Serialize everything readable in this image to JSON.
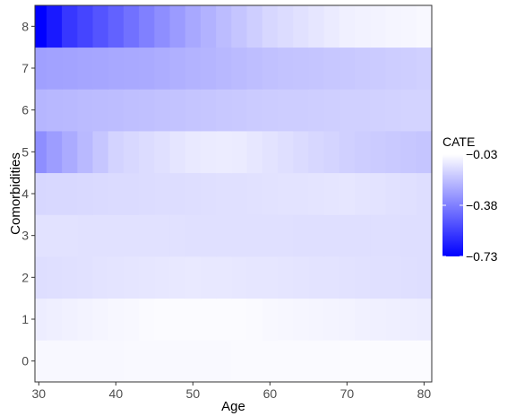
{
  "chart_data": {
    "type": "heatmap",
    "xlabel": "Age",
    "ylabel": "Comorbidities",
    "x_ticks": [
      30,
      40,
      50,
      60,
      70,
      80
    ],
    "y_ticks": [
      0,
      1,
      2,
      3,
      4,
      5,
      6,
      7,
      8
    ],
    "xlim": [
      29.5,
      81
    ],
    "ylim": [
      -0.5,
      8.5
    ],
    "x_start": 30,
    "x_end": 80,
    "x_step": 2,
    "rows": [
      {
        "comorbidities": 0,
        "x": [
          30,
          80
        ],
        "values": [
          -0.05,
          -0.04
        ]
      },
      {
        "comorbidities": 1,
        "x": [
          30,
          45,
          55,
          80
        ],
        "values": [
          -0.08,
          -0.04,
          -0.04,
          -0.08
        ]
      },
      {
        "comorbidities": 2,
        "x": [
          30,
          50,
          80
        ],
        "values": [
          -0.12,
          -0.09,
          -0.12
        ]
      },
      {
        "comorbidities": 3,
        "x": [
          30,
          80
        ],
        "values": [
          -0.11,
          -0.12
        ]
      },
      {
        "comorbidities": 4,
        "x": [
          30,
          50,
          70,
          80
        ],
        "values": [
          -0.14,
          -0.12,
          -0.1,
          -0.12
        ]
      },
      {
        "comorbidities": 5,
        "x": [
          30,
          34,
          40,
          50,
          55,
          70,
          80
        ],
        "values": [
          -0.34,
          -0.26,
          -0.15,
          -0.09,
          -0.08,
          -0.16,
          -0.19
        ]
      },
      {
        "comorbidities": 6,
        "x": [
          30,
          45,
          60,
          80
        ],
        "values": [
          -0.23,
          -0.2,
          -0.17,
          -0.15
        ]
      },
      {
        "comorbidities": 7,
        "x": [
          30,
          45,
          60,
          80
        ],
        "values": [
          -0.29,
          -0.26,
          -0.2,
          -0.16
        ]
      },
      {
        "comorbidities": 8,
        "x": [
          30,
          32,
          34,
          38,
          42,
          46,
          50,
          55,
          60,
          70,
          80
        ],
        "values": [
          -0.73,
          -0.66,
          -0.58,
          -0.5,
          -0.42,
          -0.34,
          -0.27,
          -0.2,
          -0.14,
          -0.07,
          -0.05
        ]
      }
    ],
    "legend": {
      "title": "CATE",
      "position": "right",
      "labels": [
        "−0.03",
        "−0.38",
        "−0.73"
      ],
      "values": [
        -0.03,
        -0.38,
        -0.73
      ],
      "low_color": "#0000ff",
      "high_color": "#ffffff"
    },
    "grid": false
  }
}
